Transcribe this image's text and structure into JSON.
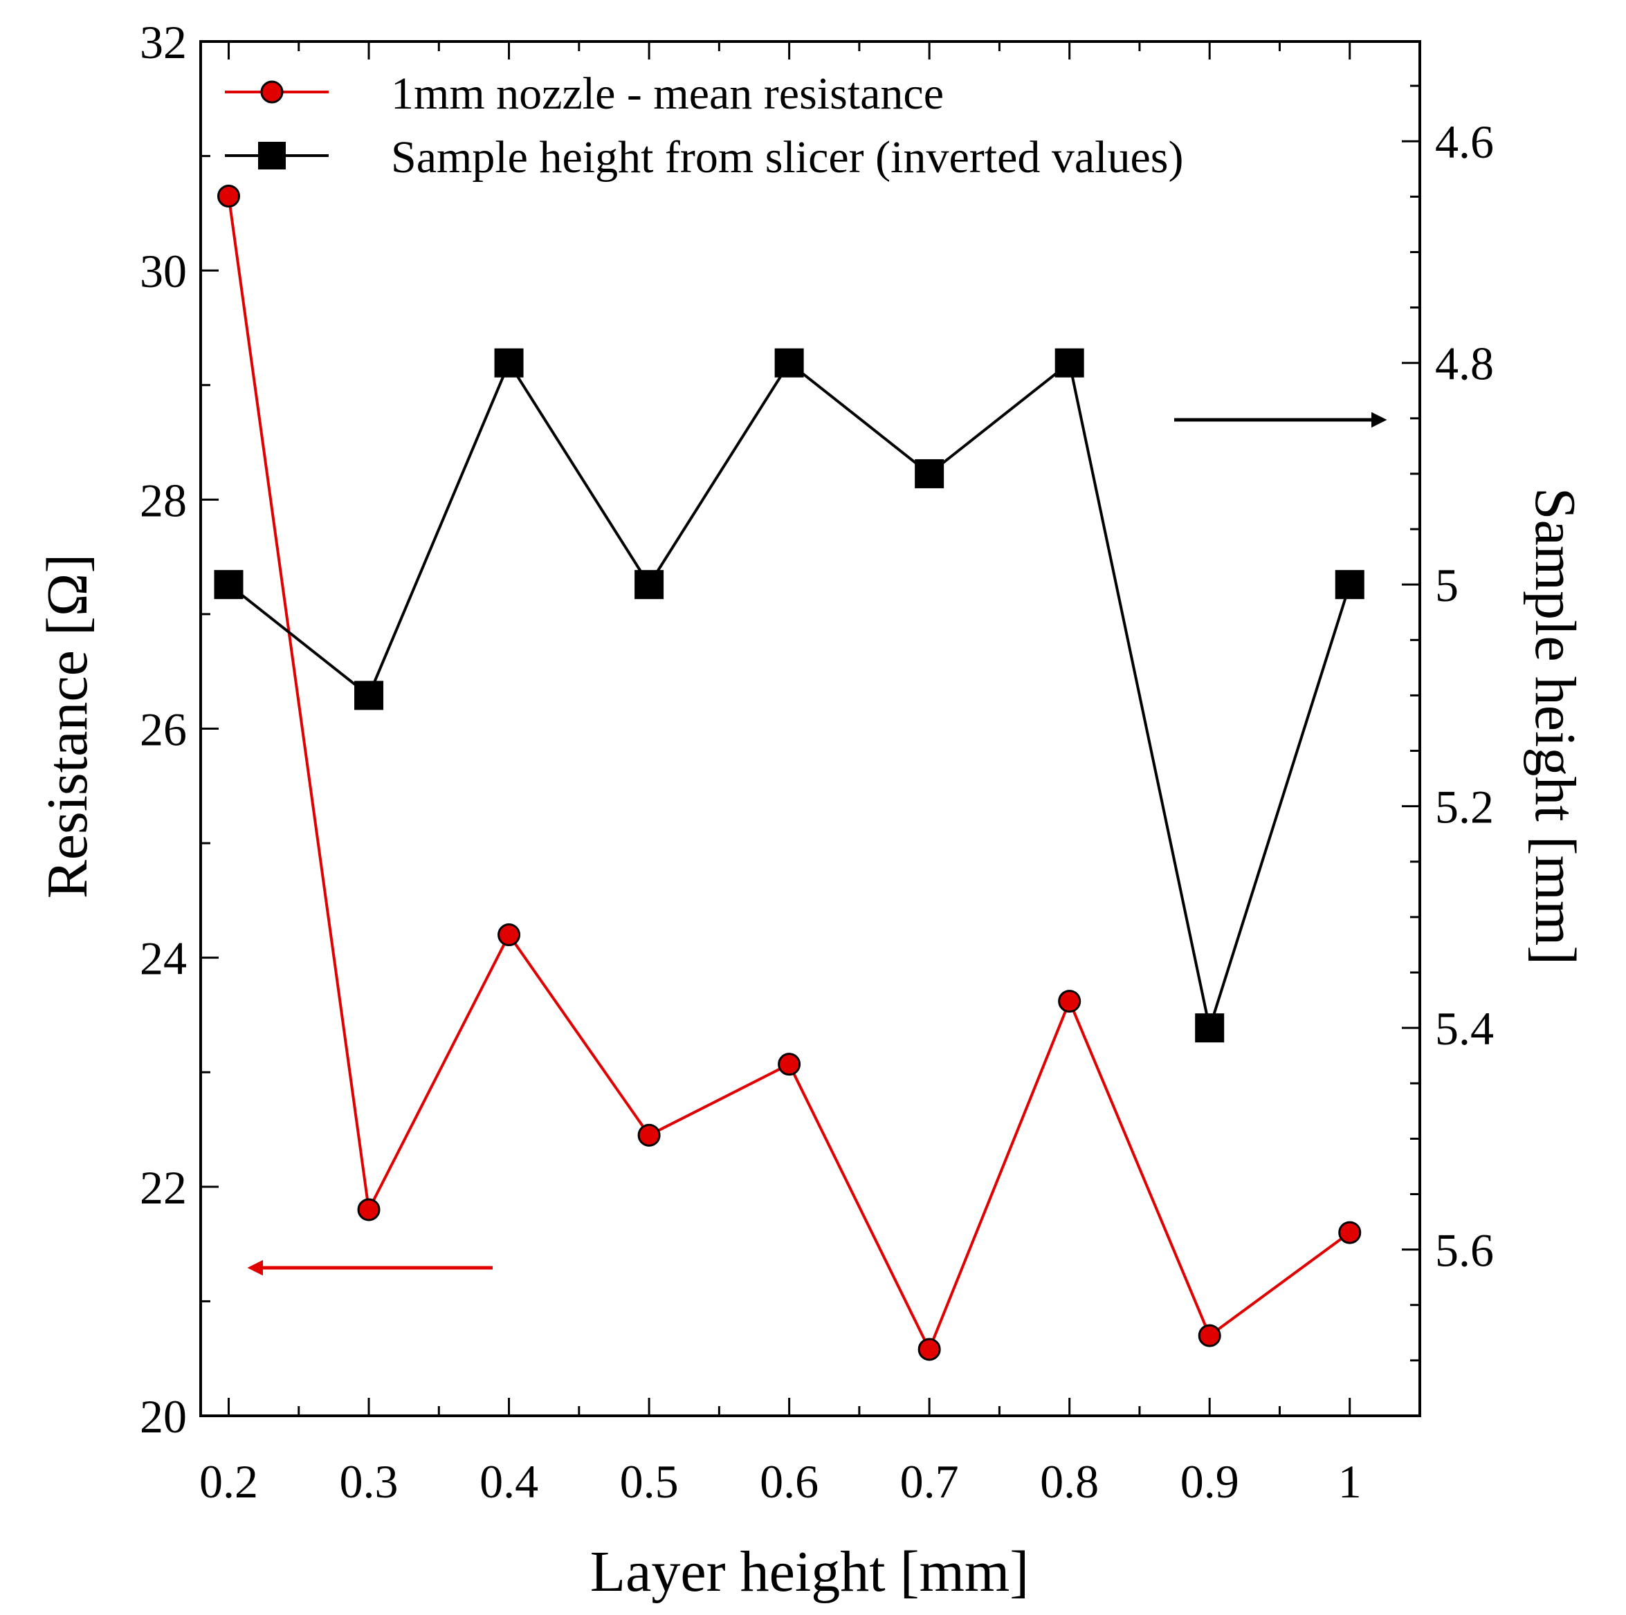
{
  "chart_data": {
    "type": "line",
    "title": "",
    "xlabel": "Layer height [mm]",
    "ylabel_left": "Resistance [Ω]",
    "ylabel_right": "Sample height [mm]",
    "x": [
      0.2,
      0.3,
      0.4,
      0.5,
      0.6,
      0.7,
      0.8,
      0.9,
      1.0
    ],
    "xlim": [
      0.18,
      1.05
    ],
    "ylim_left": [
      20,
      32
    ],
    "ylim_right_inverted": [
      4.51,
      5.75
    ],
    "x_tick_labels": [
      "0.2",
      "0.3",
      "0.4",
      "0.5",
      "0.6",
      "0.7",
      "0.8",
      "0.9",
      "1"
    ],
    "y_left_ticks": [
      20,
      22,
      24,
      26,
      28,
      30,
      32
    ],
    "y_left_tick_labels": [
      "20",
      "22",
      "24",
      "26",
      "28",
      "30",
      "32"
    ],
    "y_right_ticks": [
      4.6,
      4.8,
      5.0,
      5.2,
      5.4,
      5.6
    ],
    "y_right_tick_labels": [
      "4.6",
      "4.8",
      "5",
      "5.2",
      "5.4",
      "5.6"
    ],
    "legend_position": "top",
    "series": [
      {
        "name": "1mm nozzle - mean resistance",
        "axis": "left",
        "color": "#e00000",
        "marker": "circle",
        "values": [
          30.65,
          21.8,
          24.2,
          22.45,
          23.07,
          20.58,
          23.62,
          20.7,
          21.6
        ]
      },
      {
        "name": "Sample height from slicer (inverted values)",
        "axis": "right",
        "color": "#000000",
        "marker": "square",
        "values": [
          5.0,
          5.1,
          4.8,
          5.0,
          4.8,
          4.9,
          4.8,
          5.4,
          5.0
        ]
      }
    ],
    "annotations": [
      {
        "type": "arrow",
        "direction": "left",
        "color": "#e00000",
        "meaning": "red series uses left axis"
      },
      {
        "type": "arrow",
        "direction": "right",
        "color": "#000000",
        "meaning": "black series uses right axis"
      }
    ]
  }
}
